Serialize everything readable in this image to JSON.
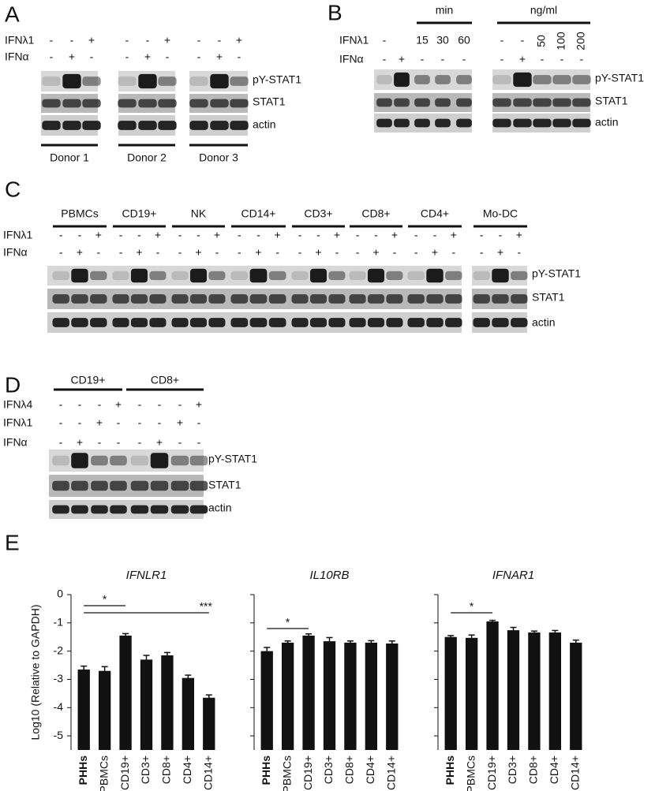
{
  "panels": [
    {
      "letter": "A",
      "row_labels": [
        "IFNλ1",
        "IFNα"
      ],
      "blot_labels": [
        "pY-STAT1",
        "STAT1",
        "actin"
      ],
      "groups": [
        {
          "name": "Donor 1",
          "rows": [
            [
              "-",
              "-",
              "+"
            ],
            [
              "-",
              "+",
              "-"
            ]
          ]
        },
        {
          "name": "Donor 2",
          "rows": [
            [
              "-",
              "-",
              "+"
            ],
            [
              "-",
              "+",
              "-"
            ]
          ]
        },
        {
          "name": "Donor 3",
          "rows": [
            [
              "-",
              "-",
              "+"
            ],
            [
              "-",
              "+",
              "-"
            ]
          ]
        }
      ]
    },
    {
      "letter": "B",
      "row_labels": [
        "IFNλ1",
        "IFNα"
      ],
      "blot_labels": [
        "pY-STAT1",
        "STAT1",
        "actin"
      ],
      "groups": [
        {
          "unit": "min",
          "rows": [
            [
              "-",
              null,
              "15",
              "30",
              "60"
            ],
            [
              "-",
              "+",
              "-",
              "-",
              "-"
            ]
          ]
        },
        {
          "unit": "ng/ml",
          "rows": [
            [
              "-",
              "-",
              "50",
              "100",
              "200"
            ],
            [
              "-",
              "+",
              "-",
              "-",
              "-"
            ]
          ]
        }
      ]
    },
    {
      "letter": "C",
      "row_labels": [
        "IFNλ1",
        "IFNα"
      ],
      "blot_labels": [
        "pY-STAT1",
        "STAT1",
        "actin"
      ],
      "groups": [
        {
          "name": "PBMCs",
          "rows": [
            [
              "-",
              "-",
              "+"
            ],
            [
              "-",
              "+",
              "-"
            ]
          ]
        },
        {
          "name": "CD19+",
          "rows": [
            [
              "-",
              "-",
              "+"
            ],
            [
              "-",
              "+",
              "-"
            ]
          ]
        },
        {
          "name": "NK",
          "rows": [
            [
              "-",
              "-",
              "+"
            ],
            [
              "-",
              "+",
              "-"
            ]
          ]
        },
        {
          "name": "CD14+",
          "rows": [
            [
              "-",
              "-",
              "+"
            ],
            [
              "-",
              "+",
              "-"
            ]
          ]
        },
        {
          "name": "CD3+",
          "rows": [
            [
              "-",
              "-",
              "+"
            ],
            [
              "-",
              "+",
              "-"
            ]
          ]
        },
        {
          "name": "CD8+",
          "rows": [
            [
              "-",
              "-",
              "+"
            ],
            [
              "-",
              "+",
              "-"
            ]
          ]
        },
        {
          "name": "CD4+",
          "rows": [
            [
              "-",
              "-",
              "+"
            ],
            [
              "-",
              "+",
              "-"
            ]
          ]
        },
        {
          "name": "Mo-DC",
          "rows": [
            [
              "-",
              "-",
              "+"
            ],
            [
              "-",
              "+",
              "-"
            ]
          ]
        }
      ]
    },
    {
      "letter": "D",
      "row_labels": [
        "IFNλ4",
        "IFNλ1",
        "IFNα"
      ],
      "blot_labels": [
        "pY-STAT1",
        "STAT1",
        "actin"
      ],
      "groups": [
        {
          "name": "CD19+",
          "rows": [
            [
              "-",
              "-",
              "-",
              "+"
            ],
            [
              "-",
              "-",
              "+",
              "-"
            ],
            [
              "-",
              "+",
              "-",
              "-"
            ]
          ]
        },
        {
          "name": "CD8+",
          "rows": [
            [
              "-",
              "-",
              "-",
              "+"
            ],
            [
              "-",
              "-",
              "+",
              "-"
            ],
            [
              "-",
              "+",
              "-",
              "-"
            ]
          ]
        }
      ]
    }
  ],
  "panel_e_letter": "E",
  "chart_data": [
    {
      "type": "bar",
      "title": "IFNLR1",
      "ylabel": "Log10 (Relative to GAPDH)",
      "categories": [
        "PHHs",
        "PBMCs",
        "CD19+",
        "CD3+",
        "CD8+",
        "CD4+",
        "CD14+"
      ],
      "values": [
        -2.65,
        -2.7,
        -1.45,
        -2.3,
        -2.15,
        -2.95,
        -3.65
      ],
      "errors": [
        0.12,
        0.15,
        0.07,
        0.15,
        0.1,
        0.1,
        0.1
      ],
      "color": "#111111",
      "ylim": [
        -5.5,
        0
      ],
      "yticks": [
        0,
        -1,
        -2,
        -3,
        -4,
        -5
      ],
      "tick_labels": true,
      "annotations": [
        "*",
        "***"
      ]
    },
    {
      "type": "bar",
      "title": "IL10RB",
      "categories": [
        "PHHs",
        "PBMCs",
        "CD19+",
        "CD3+",
        "CD8+",
        "CD4+",
        "CD14+"
      ],
      "values": [
        -2.0,
        -1.7,
        -1.45,
        -1.65,
        -1.7,
        -1.7,
        -1.73
      ],
      "errors": [
        0.13,
        0.06,
        0.06,
        0.13,
        0.06,
        0.07,
        0.09
      ],
      "color": "#111111",
      "ylim": [
        -5.5,
        0
      ],
      "yticks": [
        0,
        -1,
        -2,
        -3,
        -4,
        -5
      ],
      "tick_labels": false,
      "annotations": [
        "*"
      ]
    },
    {
      "type": "bar",
      "title": "IFNAR1",
      "categories": [
        "PHHs",
        "PBMCs",
        "CD19+",
        "CD3+",
        "CD8+",
        "CD4+",
        "CD14+"
      ],
      "values": [
        -1.5,
        -1.53,
        -0.95,
        -1.26,
        -1.34,
        -1.34,
        -1.7
      ],
      "errors": [
        0.05,
        0.1,
        0.04,
        0.1,
        0.05,
        0.07,
        0.09
      ],
      "color": "#111111",
      "ylim": [
        -5.5,
        0
      ],
      "yticks": [
        0,
        -1,
        -2,
        -3,
        -4,
        -5
      ],
      "tick_labels": false,
      "annotations": [
        "*"
      ]
    }
  ]
}
